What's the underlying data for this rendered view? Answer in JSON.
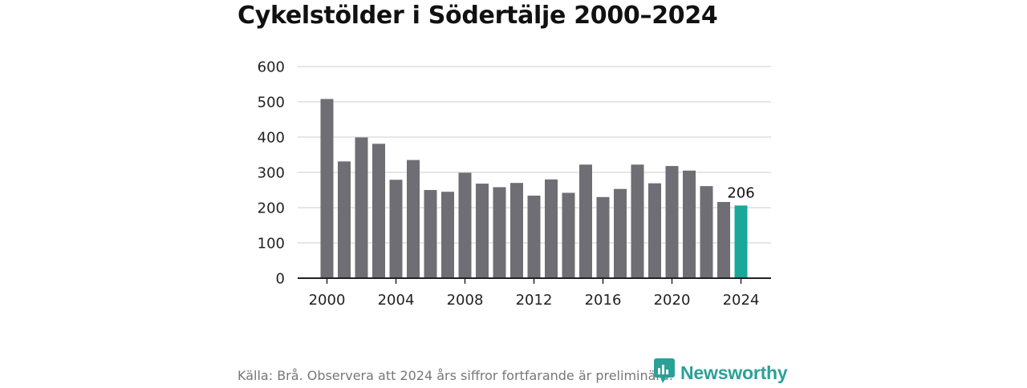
{
  "title": "Cykelstölder i Södertälje 2000–2024",
  "source": "Källa: Brå. Observera att 2024 års siffror fortfarande är preliminära.",
  "brand": {
    "name": "Newsworthy",
    "icon": "newsworthy-logo-icon"
  },
  "colors": {
    "bar": "#6f6e74",
    "highlight": "#1aa89a",
    "grid": "#dddddd",
    "axis": "#222222"
  },
  "chart_data": {
    "type": "bar",
    "x": [
      2000,
      2001,
      2002,
      2003,
      2004,
      2005,
      2006,
      2007,
      2008,
      2009,
      2010,
      2011,
      2012,
      2013,
      2014,
      2015,
      2016,
      2017,
      2018,
      2019,
      2020,
      2021,
      2022,
      2023,
      2024
    ],
    "values": [
      508,
      331,
      399,
      381,
      279,
      335,
      250,
      245,
      299,
      268,
      258,
      270,
      234,
      280,
      242,
      322,
      230,
      253,
      322,
      269,
      318,
      305,
      261,
      216,
      206
    ],
    "highlight_index": 24,
    "data_labels": [
      {
        "index": 24,
        "text": "206"
      }
    ],
    "yticks": [
      "0",
      "100",
      "200",
      "300",
      "400",
      "500",
      "600"
    ],
    "xticks": [
      "2000",
      "2004",
      "2008",
      "2012",
      "2016",
      "2020",
      "2024"
    ],
    "ylim": [
      0,
      600
    ],
    "grid": true,
    "legend": "none"
  }
}
